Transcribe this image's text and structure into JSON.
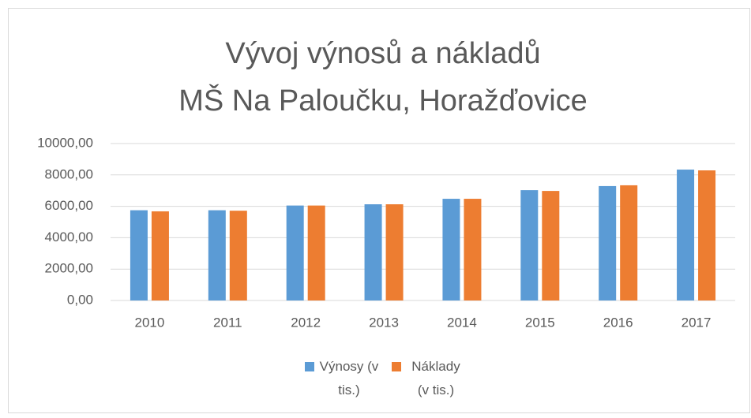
{
  "chart_data": {
    "type": "bar",
    "title": [
      "Vývoj výnosů a nákladů",
      "MŠ Na Paloučku, Horažďovice"
    ],
    "categories": [
      "2010",
      "2011",
      "2012",
      "2013",
      "2014",
      "2015",
      "2016",
      "2017"
    ],
    "series": [
      {
        "name": "Výnosy (v tis.)",
        "color": "#5b9bd5",
        "values": [
          5750,
          5750,
          6050,
          6130,
          6480,
          7030,
          7290,
          8340
        ]
      },
      {
        "name": "Náklady (v tis.)",
        "color": "#ed7d31",
        "values": [
          5680,
          5720,
          6050,
          6130,
          6480,
          6980,
          7340,
          8290
        ]
      }
    ],
    "ylim": [
      0,
      10000
    ],
    "yticks": [
      {
        "value": 0,
        "label": "0,00"
      },
      {
        "value": 2000,
        "label": "2000,00"
      },
      {
        "value": 4000,
        "label": "4000,00"
      },
      {
        "value": 6000,
        "label": "6000,00"
      },
      {
        "value": 8000,
        "label": "8000,00"
      },
      {
        "value": 10000,
        "label": "10000,00"
      }
    ],
    "grid": true,
    "legend": "bottom"
  }
}
